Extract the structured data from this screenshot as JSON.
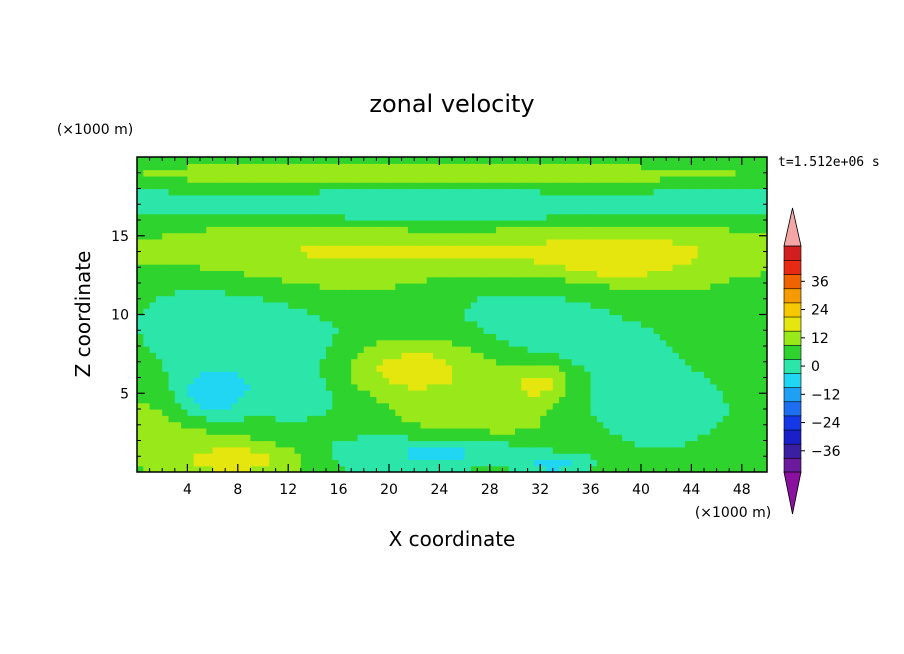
{
  "chart_data": {
    "type": "heatmap",
    "title": "zonal velocity",
    "xlabel": "X coordinate",
    "ylabel": "Z coordinate",
    "x_unit": "(×1000 m)",
    "y_unit": "(×1000 m)",
    "time_label": "t=1.512e+06 s",
    "xlim": [
      0,
      50
    ],
    "ylim": [
      0,
      20
    ],
    "x_ticks": [
      4,
      8,
      12,
      16,
      20,
      24,
      28,
      32,
      36,
      40,
      44,
      48
    ],
    "y_ticks": [
      5,
      10,
      15
    ],
    "colorbar": {
      "levels": [
        -42,
        -36,
        -30,
        -24,
        -18,
        -12,
        -6,
        0,
        6,
        12,
        18,
        24,
        30,
        36,
        42
      ],
      "tick_labels": [
        "36",
        "24",
        "12",
        "0",
        "−12",
        "−24",
        "−36"
      ],
      "tick_values": [
        36,
        24,
        12,
        0,
        -12,
        -24,
        -36
      ],
      "colors": [
        "#6a1a9a",
        "#3a1fa0",
        "#1a20c8",
        "#1438e6",
        "#1e6ef0",
        "#1ea0f5",
        "#21d6f2",
        "#2be6a8",
        "#2ed32e",
        "#98e81a",
        "#e6e60f",
        "#f5c800",
        "#f59a00",
        "#f06400",
        "#e62a14",
        "#d21e1e"
      ],
      "over_color": "#f4a6a6",
      "under_color": "#8a10a0"
    },
    "z_description_fields": [
      {
        "value": -8,
        "x": 11,
        "z": 6,
        "sx": 8,
        "sz": 3
      },
      {
        "value": -14,
        "x": 6,
        "z": 5,
        "sx": 2.5,
        "sz": 1.5
      },
      {
        "value": -10,
        "x": 24,
        "z": 1.2,
        "sx": 10,
        "sz": 1.2
      },
      {
        "value": 12,
        "x": 22,
        "z": 6.5,
        "sx": 6,
        "sz": 2
      },
      {
        "value": 14,
        "x": 32,
        "z": 5.5,
        "sx": 3,
        "sz": 1.5
      },
      {
        "value": 12,
        "x": 8,
        "z": 0.8,
        "sx": 5,
        "sz": 1.0
      },
      {
        "value": 10,
        "x": 30,
        "z": 14,
        "sx": 30,
        "sz": 1.5
      },
      {
        "value": 14,
        "x": 38,
        "z": 13.5,
        "sx": 4,
        "sz": 1.0
      },
      {
        "value": -8,
        "x": 25,
        "z": 17,
        "sx": 35,
        "sz": 1.2
      },
      {
        "value": 6,
        "x": 25,
        "z": 19,
        "sx": 40,
        "sz": 0.8
      },
      {
        "value": -6,
        "x": 42,
        "z": 4,
        "sx": 8,
        "sz": 3
      },
      {
        "value": -12,
        "x": 33,
        "z": 0.5,
        "sx": 3,
        "sz": 0.6
      }
    ]
  }
}
